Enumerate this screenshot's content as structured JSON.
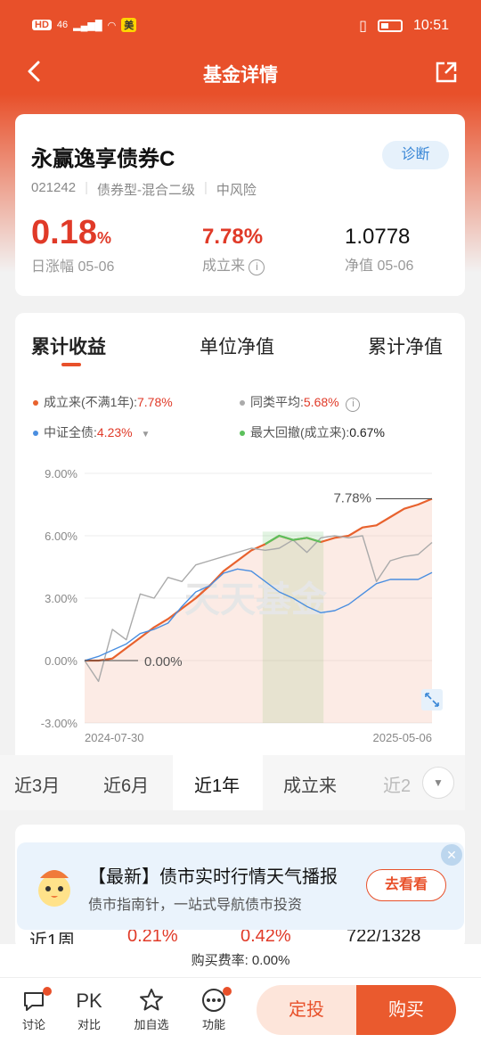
{
  "status": {
    "time": "10:51",
    "hd": "HD",
    "net": "46",
    "mei": "美"
  },
  "header": {
    "title": "基金详情"
  },
  "fund": {
    "name": "永赢逸享债券C",
    "diagnose": "诊断",
    "code": "021242",
    "type": "债券型-混合二级",
    "risk": "中风险",
    "daily_change": "0.18",
    "daily_change_unit": "%",
    "daily_label": "日涨幅 05-06",
    "since_inception": "7.78%",
    "since_label": "成立来",
    "nav": "1.0778",
    "nav_label": "净值 05-06"
  },
  "chart_tabs": [
    "累计收益",
    "单位净值",
    "累计净值"
  ],
  "legend": {
    "fund_label": "成立来(不满1年):",
    "fund_value": "7.78%",
    "peer_label": "同类平均:",
    "peer_value": "5.68%",
    "index_label": "中证全债:",
    "index_value": "4.23%",
    "drawdown_label": "最大回撤(成立来):",
    "drawdown_value": "0.67%"
  },
  "chart_data": {
    "type": "line",
    "yticks": [
      "9.00%",
      "6.00%",
      "3.00%",
      "0.00%",
      "-3.00%"
    ],
    "ylim": [
      -3,
      9
    ],
    "x_start": "2024-07-30",
    "x_end": "2025-05-06",
    "annotations": {
      "end_value": "7.78%",
      "start_value": "0.00%"
    },
    "watermark": "天天基金",
    "colors": {
      "fund": "#e8622e",
      "peer": "#aaaaaa",
      "index": "#4a8ee0",
      "drawdown": "#5cc05c"
    },
    "series": [
      {
        "name": "成立来",
        "values": [
          0.0,
          0.0,
          0.1,
          0.6,
          1.1,
          1.6,
          2.0,
          2.5,
          3.0,
          3.6,
          4.3,
          4.8,
          5.3,
          5.6,
          6.0,
          5.8,
          5.9,
          5.7,
          5.9,
          6.0,
          6.4,
          6.5,
          6.9,
          7.3,
          7.5,
          7.78
        ]
      },
      {
        "name": "同类平均",
        "values": [
          0.0,
          -1.0,
          1.5,
          1.0,
          3.2,
          3.0,
          4.0,
          3.8,
          4.6,
          4.8,
          5.0,
          5.2,
          5.4,
          5.3,
          5.4,
          5.8,
          5.2,
          5.9,
          6.0,
          5.9,
          6.0,
          3.8,
          4.8,
          5.0,
          5.1,
          5.68
        ]
      },
      {
        "name": "中证全债",
        "values": [
          0.0,
          0.2,
          0.5,
          0.8,
          1.3,
          1.5,
          1.8,
          2.6,
          3.3,
          3.6,
          4.2,
          4.4,
          4.3,
          3.8,
          3.3,
          3.0,
          2.6,
          2.3,
          2.4,
          2.7,
          3.2,
          3.7,
          3.9,
          3.9,
          3.9,
          4.23
        ]
      }
    ]
  },
  "periods": [
    "近3月",
    "近6月",
    "近1年",
    "成立来",
    "近2"
  ],
  "banner": {
    "title": "【最新】债市实时行情天气播报",
    "subtitle": "债市指南针，一站式导航债市投资",
    "action": "去看看"
  },
  "peek": {
    "label": "近1周",
    "v1": "0.21%",
    "v2": "0.42%",
    "rank": "722/1328"
  },
  "fee": "购买费率: 0.00%",
  "nav_items": [
    {
      "icon": "comment",
      "label": "讨论"
    },
    {
      "icon": "pk",
      "label": "对比"
    },
    {
      "icon": "star",
      "label": "加自选"
    },
    {
      "icon": "more",
      "label": "功能"
    }
  ],
  "actions": {
    "dingtou": "定投",
    "buy": "购买"
  }
}
